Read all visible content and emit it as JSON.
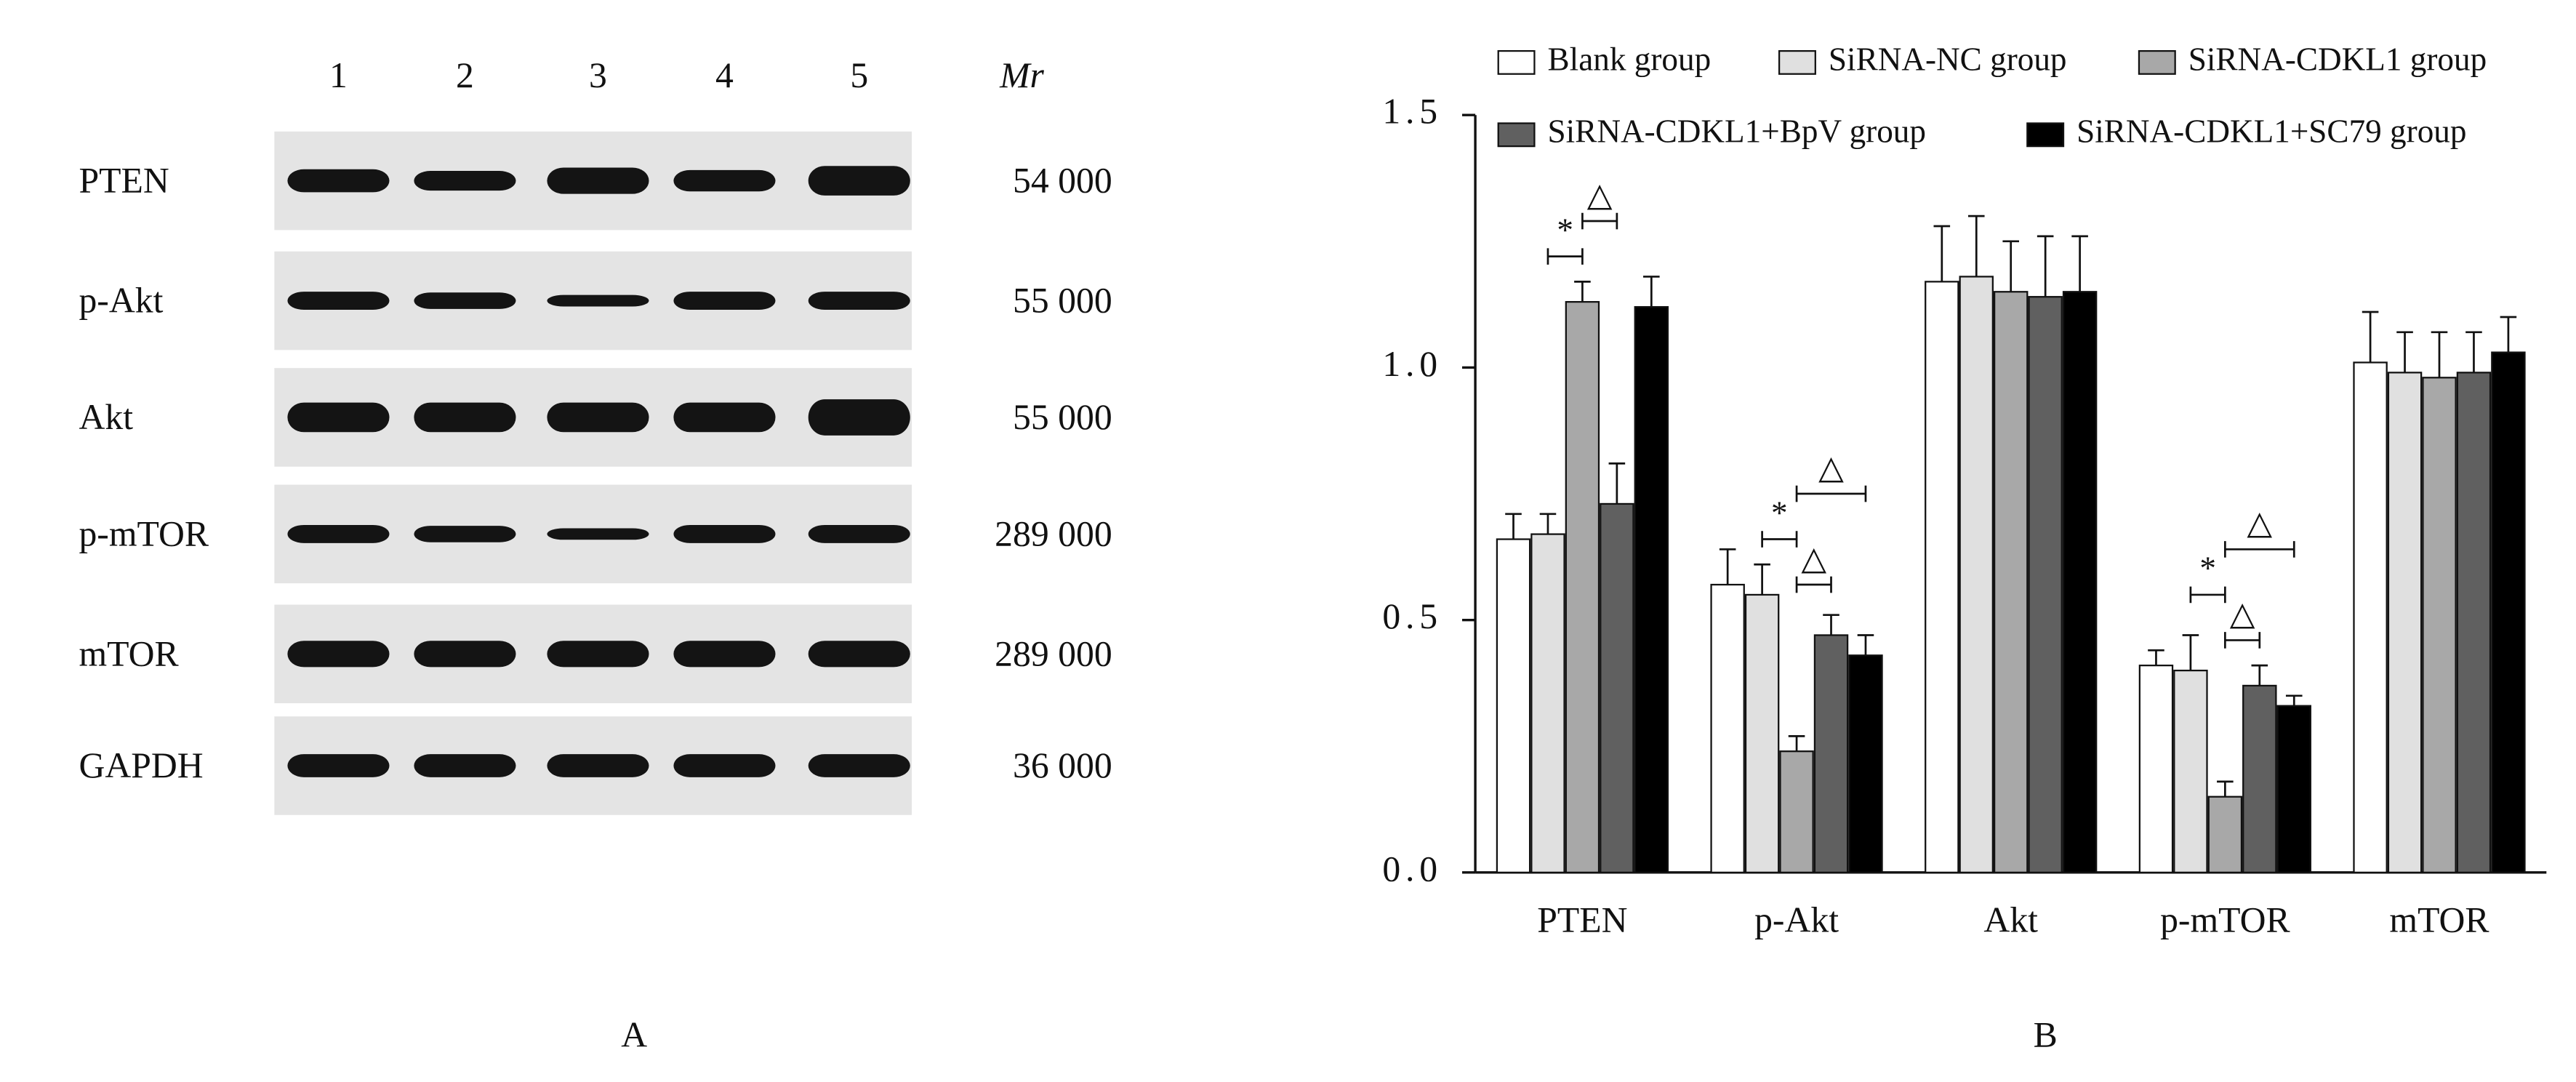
{
  "panel_a": {
    "label": "A",
    "lanes": [
      "1",
      "2",
      "3",
      "4",
      "5"
    ],
    "mr_header": "Mr",
    "rows": [
      {
        "protein": "PTEN",
        "mr": "54 000"
      },
      {
        "protein": "p-Akt",
        "mr": "55 000"
      },
      {
        "protein": "Akt",
        "mr": "55 000"
      },
      {
        "protein": "p-mTOR",
        "mr": "289 000"
      },
      {
        "protein": "mTOR",
        "mr": "289 000"
      },
      {
        "protein": "GAPDH",
        "mr": "36 000"
      }
    ]
  },
  "chart_data": {
    "type": "bar",
    "label": "B",
    "categories": [
      "PTEN",
      "p-Akt",
      "Akt",
      "p-mTOR",
      "mTOR"
    ],
    "series": [
      {
        "name": "Blank group",
        "color": "#ffffff",
        "values": [
          0.66,
          0.57,
          1.17,
          0.41,
          1.01
        ],
        "errors": [
          0.05,
          0.07,
          0.11,
          0.03,
          0.1
        ]
      },
      {
        "name": "SiRNA-NC group",
        "color": "#e0e0e0",
        "values": [
          0.67,
          0.55,
          1.18,
          0.4,
          0.99
        ],
        "errors": [
          0.04,
          0.06,
          0.12,
          0.07,
          0.08
        ]
      },
      {
        "name": "SiRNA-CDKL1 group",
        "color": "#a8a8a8",
        "values": [
          1.13,
          0.24,
          1.15,
          0.15,
          0.98
        ],
        "errors": [
          0.04,
          0.03,
          0.1,
          0.03,
          0.09
        ]
      },
      {
        "name": "SiRNA-CDKL1+BpV group",
        "color": "#606060",
        "values": [
          0.73,
          0.47,
          1.14,
          0.37,
          0.99
        ],
        "errors": [
          0.08,
          0.04,
          0.12,
          0.04,
          0.08
        ]
      },
      {
        "name": "SiRNA-CDKL1+SC79 group",
        "color": "#000000",
        "values": [
          1.12,
          0.43,
          1.15,
          0.33,
          1.03
        ],
        "errors": [
          0.06,
          0.04,
          0.11,
          0.02,
          0.07
        ]
      }
    ],
    "ylim": [
      0,
      1.5
    ],
    "yticks": [
      {
        "value": 0,
        "label": "0.0"
      },
      {
        "value": 0.5,
        "label": "0.5"
      },
      {
        "value": 1,
        "label": "1.0"
      },
      {
        "value": 1.5,
        "label": "1.5"
      }
    ],
    "annotations": [
      "*",
      "△",
      "*",
      "△",
      "△",
      "*",
      "△",
      "△"
    ]
  }
}
